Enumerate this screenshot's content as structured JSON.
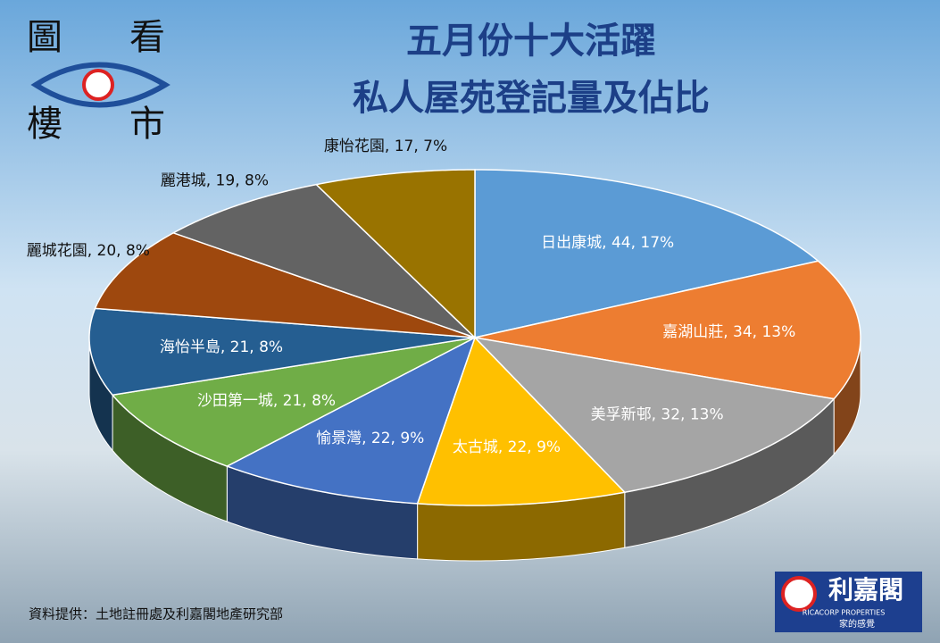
{
  "logo": {
    "tl": "圖",
    "tr": "看",
    "bl": "樓",
    "br": "市"
  },
  "source": "資料提供：土地註冊處及利嘉閣地產研究部",
  "brand": {
    "name": "利嘉閣",
    "english": "RICACORP PROPERTIES",
    "slogan": "家的感覺"
  },
  "chart_data": {
    "type": "pie",
    "title_lines": [
      "五月份十大活躍",
      "私人屋苑登記量及佔比"
    ],
    "categories": [
      "日出康城",
      "嘉湖山莊",
      "美孚新邨",
      "太古城",
      "愉景灣",
      "沙田第一城",
      "海怡半島",
      "麗城花園",
      "麗港城",
      "康怡花園"
    ],
    "values": [
      44,
      34,
      32,
      22,
      22,
      21,
      21,
      20,
      19,
      17
    ],
    "value_labels": [
      ", 44, 17%",
      ", 34, 13%",
      ", 32, 13%",
      ", 22, 9%",
      ", 22, 9%",
      ", 21, 8%",
      ", 21, 8%",
      ", 20, 8%",
      ", 19, 8%",
      ", 17, 7%"
    ],
    "colors": [
      "#5b9bd5",
      "#ed7d31",
      "#a5a5a5",
      "#ffc000",
      "#4472c4",
      "#70ad47",
      "#255e91",
      "#9e480e",
      "#636363",
      "#997300"
    ]
  }
}
